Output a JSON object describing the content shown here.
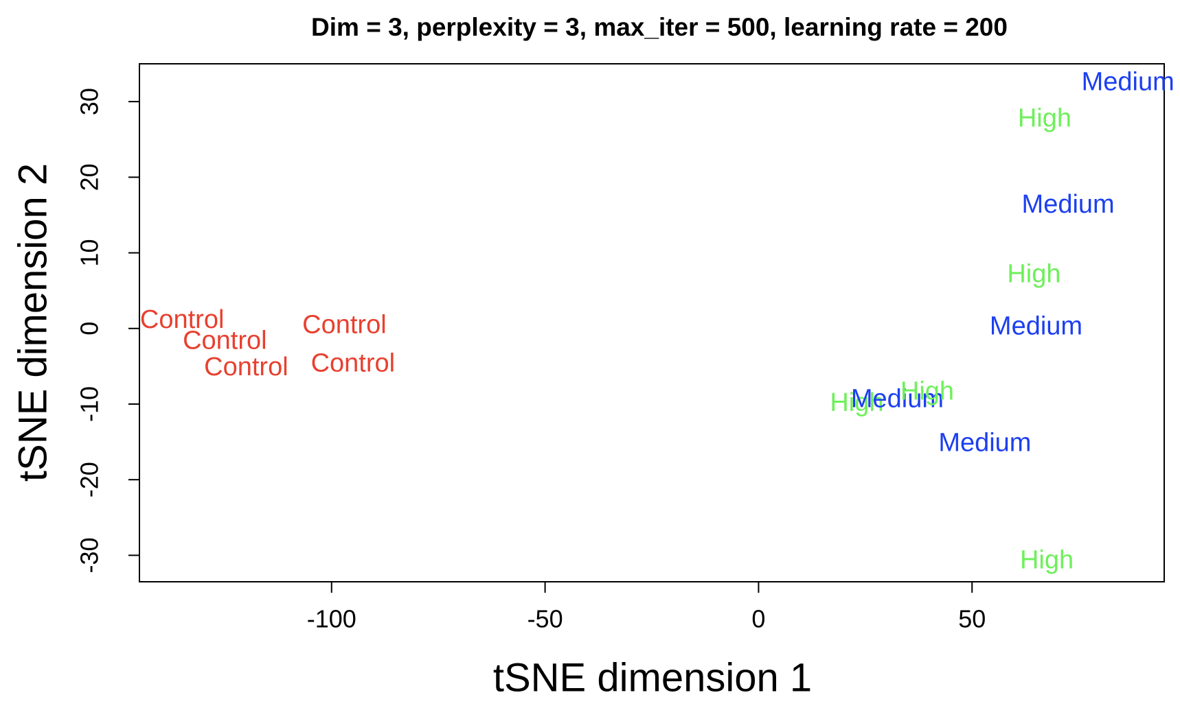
{
  "chart_data": {
    "type": "scatter",
    "title": "Dim = 3, perplexity = 3, max_iter = 500, learning rate = 200",
    "xlabel": "tSNE dimension 1",
    "ylabel": "tSNE dimension 2",
    "xlim": [
      -145,
      95
    ],
    "ylim": [
      -33.5,
      35
    ],
    "xticks": [
      -100,
      -50,
      0,
      50
    ],
    "xtick_labels": [
      "-100",
      "-50",
      "0",
      "50"
    ],
    "yticks": [
      -30,
      -20,
      -10,
      0,
      10,
      20,
      30
    ],
    "ytick_labels": [
      "-30",
      "-20",
      "-10",
      "0",
      "10",
      "20",
      "30"
    ],
    "grid": false,
    "colors": {
      "Control": "#e8402f",
      "Medium": "#1c3ff0",
      "High": "#6ef05a"
    },
    "points": [
      {
        "label": "Control",
        "x": -135,
        "y": 1
      },
      {
        "label": "Control",
        "x": -125,
        "y": -1.8
      },
      {
        "label": "Control",
        "x": -120,
        "y": -5.3
      },
      {
        "label": "Control",
        "x": -97,
        "y": 0.3
      },
      {
        "label": "Control",
        "x": -95,
        "y": -4.8
      },
      {
        "label": "Medium",
        "x": 86.5,
        "y": 32.4
      },
      {
        "label": "High",
        "x": 67,
        "y": 27.6
      },
      {
        "label": "Medium",
        "x": 72.5,
        "y": 16.2
      },
      {
        "label": "High",
        "x": 64.5,
        "y": 7
      },
      {
        "label": "Medium",
        "x": 65,
        "y": 0.1
      },
      {
        "label": "High",
        "x": 23,
        "y": -10
      },
      {
        "label": "Medium",
        "x": 32.5,
        "y": -9.5
      },
      {
        "label": "High",
        "x": 39.5,
        "y": -8.5
      },
      {
        "label": "Medium",
        "x": 53,
        "y": -15.3
      },
      {
        "label": "High",
        "x": 67.5,
        "y": -30.8
      }
    ]
  }
}
